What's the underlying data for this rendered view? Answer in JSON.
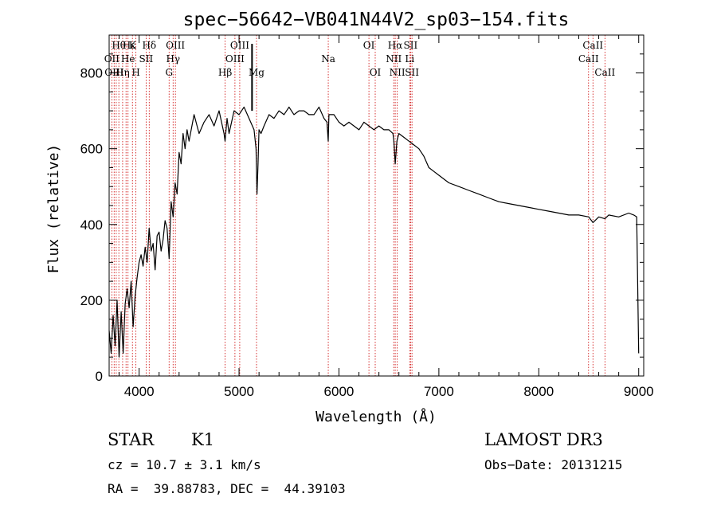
{
  "chart_data": {
    "type": "line",
    "title": "spec−56642−VB041N44V2_sp03−154.fits",
    "xlabel": "Wavelength (Å)",
    "ylabel": "Flux (relative)",
    "xlim": [
      3700,
      9050
    ],
    "ylim": [
      0,
      900
    ],
    "xticks": [
      {
        "value": 4000,
        "label": "4000"
      },
      {
        "value": 5000,
        "label": "5000"
      },
      {
        "value": 6000,
        "label": "6000"
      },
      {
        "value": 7000,
        "label": "7000"
      },
      {
        "value": 8000,
        "label": "8000"
      },
      {
        "value": 9000,
        "label": "9000"
      }
    ],
    "yticks": [
      {
        "value": 0,
        "label": "0"
      },
      {
        "value": 200,
        "label": "200"
      },
      {
        "value": 400,
        "label": "400"
      },
      {
        "value": 600,
        "label": "600"
      },
      {
        "value": 800,
        "label": "800"
      }
    ],
    "series": [
      {
        "name": "flux",
        "color": "#000000",
        "x": [
          3700,
          3720,
          3740,
          3760,
          3780,
          3800,
          3820,
          3840,
          3860,
          3880,
          3900,
          3920,
          3940,
          3960,
          3980,
          4000,
          4020,
          4040,
          4060,
          4080,
          4100,
          4120,
          4140,
          4160,
          4180,
          4200,
          4220,
          4240,
          4260,
          4280,
          4300,
          4320,
          4340,
          4360,
          4380,
          4400,
          4420,
          4440,
          4460,
          4480,
          4500,
          4550,
          4600,
          4650,
          4700,
          4750,
          4800,
          4850,
          4860,
          4880,
          4900,
          4950,
          5000,
          5050,
          5100,
          5150,
          5170,
          5180,
          5190,
          5200,
          5220,
          5250,
          5300,
          5350,
          5400,
          5450,
          5500,
          5550,
          5600,
          5650,
          5700,
          5750,
          5800,
          5850,
          5880,
          5893,
          5900,
          5950,
          6000,
          6050,
          6100,
          6150,
          6200,
          6250,
          6300,
          6350,
          6400,
          6450,
          6500,
          6540,
          6550,
          6563,
          6580,
          6600,
          6650,
          6700,
          6750,
          6800,
          6850,
          6900,
          6950,
          7000,
          7100,
          7200,
          7300,
          7400,
          7500,
          7600,
          7700,
          7800,
          7900,
          8000,
          8100,
          8200,
          8300,
          8400,
          8500,
          8542,
          8600,
          8662,
          8700,
          8800,
          8900,
          8950,
          8980,
          9000
        ],
        "y": [
          120,
          60,
          160,
          80,
          200,
          50,
          170,
          60,
          190,
          230,
          180,
          250,
          130,
          210,
          260,
          300,
          320,
          290,
          340,
          300,
          390,
          330,
          350,
          280,
          370,
          380,
          330,
          360,
          410,
          390,
          310,
          460,
          420,
          510,
          480,
          590,
          560,
          640,
          600,
          650,
          620,
          690,
          640,
          670,
          690,
          660,
          700,
          640,
          620,
          680,
          640,
          700,
          690,
          710,
          680,
          650,
          600,
          480,
          560,
          650,
          640,
          660,
          690,
          680,
          700,
          690,
          710,
          690,
          700,
          700,
          690,
          690,
          710,
          680,
          670,
          620,
          690,
          690,
          670,
          660,
          670,
          660,
          650,
          670,
          660,
          650,
          660,
          650,
          650,
          640,
          620,
          560,
          620,
          640,
          630,
          620,
          610,
          600,
          580,
          550,
          540,
          530,
          510,
          500,
          490,
          480,
          470,
          460,
          455,
          450,
          445,
          440,
          435,
          430,
          425,
          425,
          420,
          405,
          420,
          415,
          425,
          420,
          430,
          425,
          420,
          60
        ],
        "linewidth": 1.2
      }
    ],
    "reference_lines": {
      "color": "#cc0000",
      "style": "dotted",
      "wavelengths": [
        3727,
        3750,
        3771,
        3797,
        3835,
        3869,
        3889,
        3933,
        3968,
        4070,
        4101,
        4300,
        4340,
        4363,
        4861,
        4959,
        5007,
        5175,
        5893,
        6300,
        6363,
        6548,
        6563,
        6583,
        6708,
        6717,
        6731,
        8498,
        8542,
        8662
      ]
    },
    "line_labels": [
      {
        "text": "Hθ",
        "wavelength": 3797,
        "row": 1
      },
      {
        "text": "OII",
        "wavelength": 3727,
        "row": 2
      },
      {
        "text": "OIII",
        "wavelength": 3750,
        "row": 3
      },
      {
        "text": "He",
        "wavelength": 3889,
        "row": 2
      },
      {
        "text": "Hη",
        "wavelength": 3835,
        "row": 3
      },
      {
        "text": "Hε",
        "wavelength": 3900,
        "row": 1
      },
      {
        "text": "K",
        "wavelength": 3933,
        "row": 1
      },
      {
        "text": "H",
        "wavelength": 3968,
        "row": 3
      },
      {
        "text": "SII",
        "wavelength": 4070,
        "row": 2
      },
      {
        "text": "Hδ",
        "wavelength": 4101,
        "row": 1
      },
      {
        "text": "OIII",
        "wavelength": 4363,
        "row": 1
      },
      {
        "text": "Hγ",
        "wavelength": 4340,
        "row": 2
      },
      {
        "text": "G",
        "wavelength": 4300,
        "row": 3
      },
      {
        "text": "OIII",
        "wavelength": 5007,
        "row": 1
      },
      {
        "text": "OIII",
        "wavelength": 4959,
        "row": 2
      },
      {
        "text": "Hβ",
        "wavelength": 4861,
        "row": 3
      },
      {
        "text": "Mg",
        "wavelength": 5175,
        "row": 3
      },
      {
        "text": "Na",
        "wavelength": 5893,
        "row": 2
      },
      {
        "text": "OI",
        "wavelength": 6300,
        "row": 1
      },
      {
        "text": "OI",
        "wavelength": 6363,
        "row": 3
      },
      {
        "text": "Hα",
        "wavelength": 6563,
        "row": 1
      },
      {
        "text": "SII",
        "wavelength": 6717,
        "row": 1
      },
      {
        "text": "NII",
        "wavelength": 6548,
        "row": 2
      },
      {
        "text": "Li",
        "wavelength": 6708,
        "row": 2
      },
      {
        "text": "NII",
        "wavelength": 6583,
        "row": 3
      },
      {
        "text": "SII",
        "wavelength": 6731,
        "row": 3
      },
      {
        "text": "CaII",
        "wavelength": 8542,
        "row": 1
      },
      {
        "text": "CaII",
        "wavelength": 8498,
        "row": 2
      },
      {
        "text": "CaII",
        "wavelength": 8662,
        "row": 3
      }
    ]
  },
  "info": {
    "class": "STAR",
    "subclass": "K1",
    "survey": "LAMOST DR3",
    "cz": "cz = 10.7 ± 3.1 km/s",
    "obs_date": "Obs−Date: 20131215",
    "coords": "RA =  39.88783, DEC =  44.39103"
  }
}
